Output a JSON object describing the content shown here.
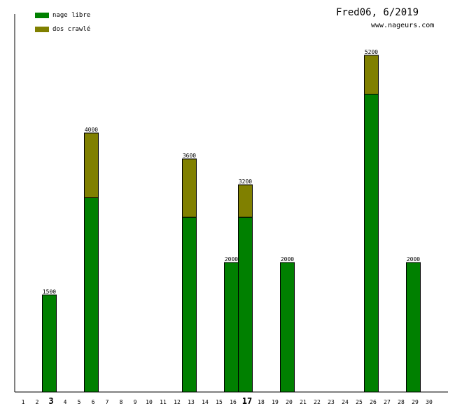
{
  "header": {
    "title": "Fred06, 6/2019",
    "subtitle": "www.nageurs.com"
  },
  "colors": {
    "nage_libre": "#008000",
    "dos_crawle": "#808000",
    "axis": "#000000"
  },
  "chart_data": {
    "type": "bar",
    "stacked": true,
    "categories": [
      "1",
      "2",
      "3",
      "4",
      "5",
      "6",
      "7",
      "8",
      "9",
      "10",
      "11",
      "12",
      "13",
      "14",
      "15",
      "16",
      "17",
      "18",
      "19",
      "20",
      "21",
      "22",
      "23",
      "24",
      "25",
      "26",
      "27",
      "28",
      "29",
      "30"
    ],
    "highlighted_categories": [
      "3",
      "17"
    ],
    "series": [
      {
        "name": "nage libre",
        "values": [
          0,
          0,
          1500,
          0,
          0,
          3000,
          0,
          0,
          0,
          0,
          0,
          0,
          2700,
          0,
          0,
          2000,
          2700,
          0,
          0,
          2000,
          0,
          0,
          0,
          0,
          0,
          4600,
          0,
          0,
          2000,
          0
        ]
      },
      {
        "name": "dos crawlé",
        "values": [
          0,
          0,
          0,
          0,
          0,
          1000,
          0,
          0,
          0,
          0,
          0,
          0,
          900,
          0,
          0,
          0,
          500,
          0,
          0,
          0,
          0,
          0,
          0,
          0,
          0,
          600,
          0,
          0,
          0,
          0
        ]
      }
    ],
    "totals": [
      0,
      0,
      1500,
      0,
      0,
      4000,
      0,
      0,
      0,
      0,
      0,
      0,
      3600,
      0,
      0,
      2000,
      3200,
      0,
      0,
      2000,
      0,
      0,
      0,
      0,
      0,
      5200,
      0,
      0,
      2000,
      0
    ],
    "ylim": [
      0,
      5200
    ],
    "grid": false,
    "legend_position": "top-left"
  }
}
